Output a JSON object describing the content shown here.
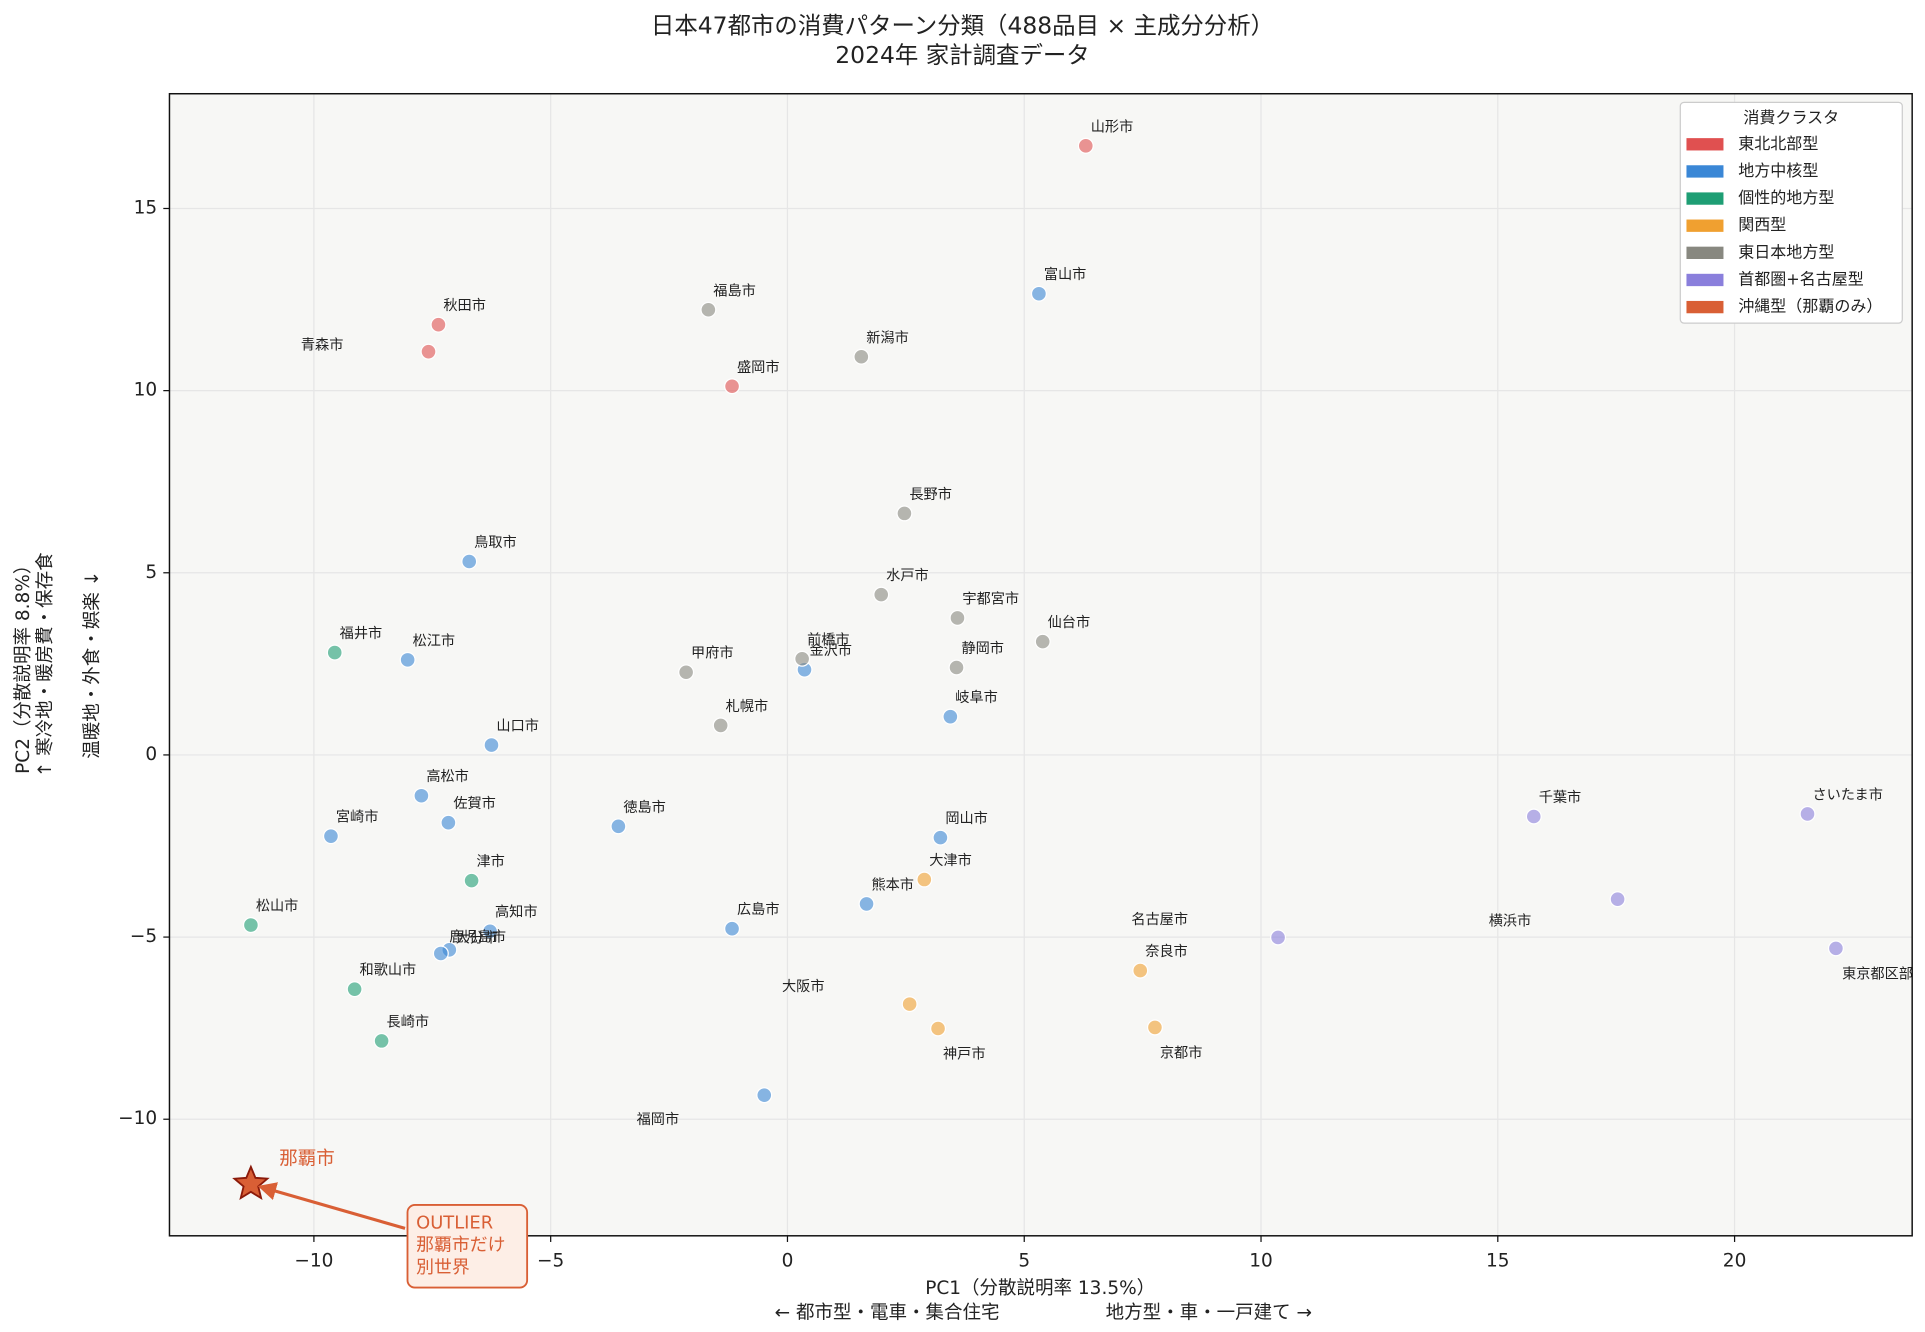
{
  "chart_data": {
    "type": "scatter",
    "title": "日本47都市の消費パターン分類（488品目 × 主成分分析）",
    "subtitle": "2024年 家計調査データ",
    "xlabel": "PC1（分散説明率 13.5%）",
    "xlabel_left": "← 都市型・電車・集合住宅",
    "xlabel_right": "地方型・車・一戸建て →",
    "ylabel": "PC2（分散説明率 8.8%）",
    "ylabel_up": "↑ 寒冷地・暖房費・保存食",
    "ylabel_down": "温暖地・外食・娯楽 ↓",
    "xlim": [
      -13.05,
      23.75
    ],
    "ylim": [
      -13.2,
      18.15
    ],
    "xticks": [
      {
        "value": -10,
        "label": "−10"
      },
      {
        "value": -5,
        "label": "−5"
      },
      0,
      5,
      10,
      15,
      20
    ],
    "yticks": [
      {
        "value": -10,
        "label": "−10"
      },
      {
        "value": -5,
        "label": "−5"
      },
      0,
      5,
      10,
      15
    ],
    "grid": true,
    "legend_title": "消費クラスタ",
    "legend_position": "upper right",
    "series": [
      {
        "name": "東北北部型",
        "color": "#e05050",
        "labels": [
          "山形市",
          "秋田市",
          "青森市",
          "盛岡市"
        ],
        "x": [
          6.3,
          -7.37,
          -7.58,
          -1.17
        ],
        "y": [
          16.72,
          11.81,
          11.07,
          10.12
        ]
      },
      {
        "name": "地方中核型",
        "color": "#3a87d6",
        "labels": [
          "富山市",
          "鳥取市",
          "松江市",
          "金沢市",
          "岐阜市",
          "山口市",
          "高松市",
          "佐賀市",
          "宮崎市",
          "徳島市",
          "岡山市",
          "熊本市",
          "高知市",
          "鹿児島市",
          "大分市",
          "広島市",
          "福岡市"
        ],
        "x": [
          5.31,
          -6.72,
          -8.02,
          0.36,
          3.44,
          -6.25,
          -7.73,
          -7.16,
          -9.64,
          -3.57,
          3.23,
          1.67,
          -6.28,
          -7.14,
          -7.32,
          -1.17,
          -0.49
        ],
        "y": [
          12.66,
          5.31,
          2.61,
          2.34,
          1.05,
          0.27,
          -1.12,
          -1.86,
          -2.23,
          -1.96,
          -2.27,
          -4.09,
          -4.84,
          -5.35,
          -5.45,
          -4.77,
          -9.34
        ]
      },
      {
        "name": "個性的地方型",
        "color": "#1e9e74",
        "labels": [
          "福井市",
          "津市",
          "松山市",
          "和歌山市",
          "長崎市"
        ],
        "x": [
          -9.56,
          -6.67,
          -11.33,
          -9.14,
          -8.57
        ],
        "y": [
          2.81,
          -3.45,
          -4.67,
          -6.43,
          -7.85
        ]
      },
      {
        "name": "関西型",
        "color": "#f0a030",
        "labels": [
          "大津市",
          "奈良市",
          "大阪市",
          "神戸市",
          "京都市"
        ],
        "x": [
          2.89,
          7.45,
          2.58,
          3.18,
          7.76
        ],
        "y": [
          -3.42,
          -5.92,
          -6.84,
          -7.51,
          -7.48
        ]
      },
      {
        "name": "東日本地方型",
        "color": "#888880",
        "labels": [
          "福島市",
          "新潟市",
          "長野市",
          "水戸市",
          "宇都宮市",
          "仙台市",
          "甲府市",
          "前橋市",
          "静岡市",
          "札幌市"
        ],
        "x": [
          -1.67,
          1.56,
          2.47,
          1.98,
          3.59,
          5.39,
          -2.14,
          0.31,
          3.57,
          -1.41
        ],
        "y": [
          12.22,
          10.93,
          6.63,
          4.4,
          3.76,
          3.11,
          2.27,
          2.64,
          2.4,
          0.81
        ]
      },
      {
        "name": "首都圏+名古屋型",
        "color": "#8a7fdc",
        "labels": [
          "千葉市",
          "さいたま市",
          "横浜市",
          "名古屋市",
          "東京都区部"
        ],
        "x": [
          15.76,
          21.54,
          17.53,
          10.36,
          22.14
        ],
        "y": [
          -1.69,
          -1.62,
          -3.96,
          -5.01,
          -5.31
        ]
      },
      {
        "name": "沖縄型（那覇のみ）",
        "color": "#d95f35",
        "marker": "star",
        "labels": [
          "那覇市"
        ],
        "x": [
          -11.33
        ],
        "y": [
          -11.78
        ]
      }
    ],
    "annotation": [
      "OUTLIER",
      "那覇市だけ",
      "別世界"
    ]
  }
}
